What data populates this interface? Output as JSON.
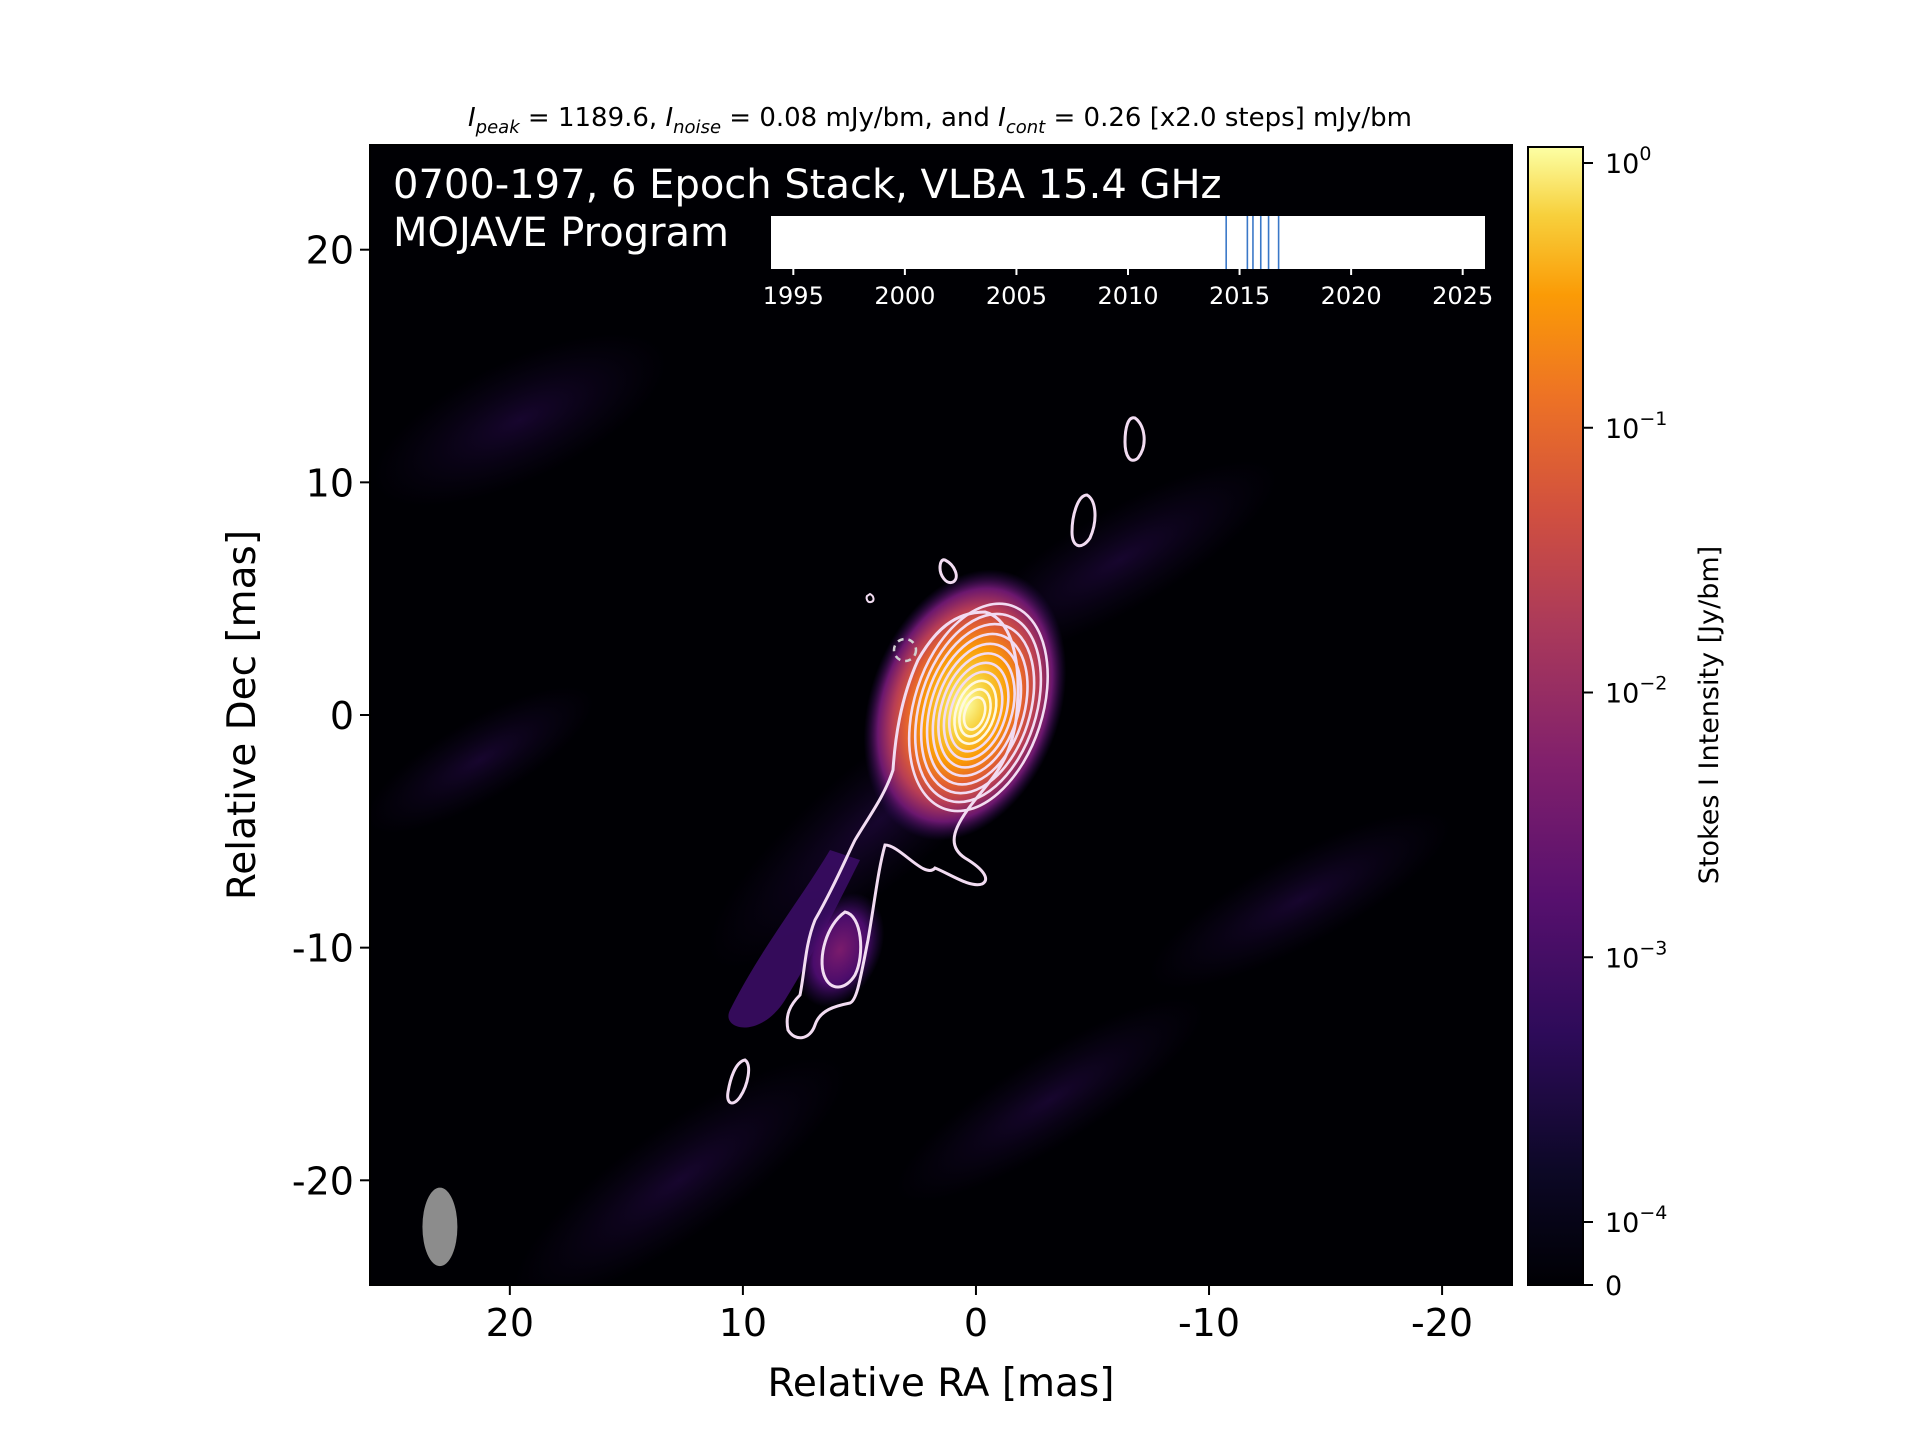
{
  "chart_data": {
    "type": "heatmap",
    "header": {
      "peak_label": "I",
      "peak_sub": "peak",
      "peak_value": " = 1189.6, ",
      "noise_label": "I",
      "noise_sub": "noise",
      "noise_value": " = 0.08 mJy/bm, and ",
      "cont_label": "I",
      "cont_sub": "cont",
      "cont_value": " = 0.26 [x2.0 steps] mJy/bm"
    },
    "title_line1": "0700-197, 6 Epoch Stack, VLBA 15.4 GHz",
    "title_line2": "MOJAVE Program",
    "xlabel": "Relative RA [mas]",
    "ylabel": "Relative Dec [mas]",
    "xlim": [
      26,
      -23
    ],
    "ylim": [
      -24.5,
      24.5
    ],
    "xticks": [
      20,
      10,
      0,
      -10,
      -20
    ],
    "yticks": [
      20,
      10,
      0,
      -10,
      -20
    ],
    "xtick_labels": [
      "20",
      "10",
      "0",
      "-10",
      "-20"
    ],
    "ytick_labels": [
      "20",
      "10",
      "0",
      "-10",
      "-20"
    ],
    "peak_position": [
      0,
      0
    ],
    "beam": {
      "x": 23,
      "y": -22,
      "major_mas": 2.7,
      "minor_mas": 1.2,
      "pa_deg": 0
    },
    "contour_levels_mJy": [
      0.26,
      0.52,
      1.04,
      2.08,
      4.16,
      8.32,
      16.64,
      33.28,
      66.56,
      133.12,
      266.24,
      532.48,
      1064.96
    ],
    "epoch_timeline": {
      "xlim": [
        1994,
        2026
      ],
      "ticks": [
        1995,
        2000,
        2005,
        2010,
        2015,
        2020,
        2025
      ],
      "tick_labels": [
        "1995",
        "2000",
        "2005",
        "2010",
        "2015",
        "2020",
        "2025"
      ],
      "epochs": [
        2014.4,
        2015.35,
        2015.6,
        2015.95,
        2016.3,
        2016.75
      ]
    },
    "colorbar": {
      "label": "Stokes I Intensity [Jy/bm]",
      "scale": "log",
      "colormap": "inferno",
      "range": [
        0,
        1.19
      ],
      "ticks": [
        {
          "base": "10",
          "exp": "0",
          "value": 1
        },
        {
          "base": "10",
          "exp": "−1",
          "value": 0.1
        },
        {
          "base": "10",
          "exp": "−2",
          "value": 0.01
        },
        {
          "base": "10",
          "exp": "−3",
          "value": 0.001
        },
        {
          "base": "10",
          "exp": "−4",
          "value": 0.0001
        },
        {
          "base": "0",
          "exp": "",
          "value": 0
        }
      ]
    },
    "colors": {
      "background": "#000004",
      "contour": "#f2dcf2",
      "beam": "#8c8c8c",
      "epoch_line": "#3a78c8",
      "text_on_image": "#ffffff"
    }
  }
}
